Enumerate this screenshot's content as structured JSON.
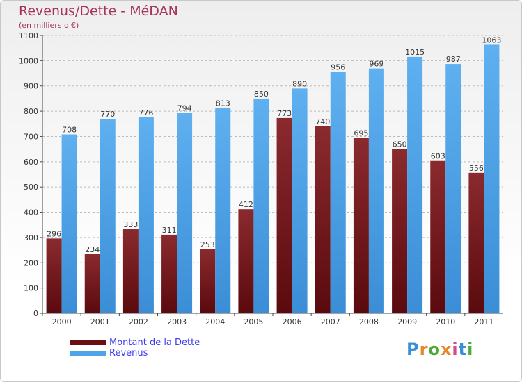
{
  "title": "Revenus/Dette - MéDAN",
  "subtitle": "(en milliers d'€)",
  "logo": {
    "text": "Proxiti",
    "letters": [
      "P",
      "r",
      "o",
      "x",
      "i",
      "t",
      "i"
    ],
    "colors": [
      "#3a8fd8",
      "#e8882a",
      "#4caa3c",
      "#e8882a",
      "#d64a8a",
      "#3a8fd8",
      "#4caa3c"
    ]
  },
  "colors": {
    "dette": "#6b0f14",
    "revenus": "#4fa3e8",
    "axis": "#444444",
    "grid": "#bbbbbb"
  },
  "chart_data": {
    "type": "bar",
    "title": "Revenus/Dette - MéDAN",
    "subtitle": "(en milliers d'€)",
    "categories": [
      "2000",
      "2001",
      "2002",
      "2003",
      "2004",
      "2005",
      "2006",
      "2007",
      "2008",
      "2009",
      "2010",
      "2011"
    ],
    "series": [
      {
        "name": "Montant de la Dette",
        "color": "#6b0f14",
        "values": [
          296,
          234,
          333,
          311,
          253,
          412,
          773,
          740,
          695,
          650,
          603,
          556
        ]
      },
      {
        "name": "Revenus",
        "color": "#4fa3e8",
        "values": [
          708,
          770,
          776,
          794,
          813,
          850,
          890,
          956,
          969,
          1015,
          987,
          1063
        ]
      }
    ],
    "yticks": [
      0,
      100,
      200,
      300,
      400,
      500,
      600,
      700,
      800,
      900,
      1000,
      1100
    ],
    "ylim": [
      0,
      1100
    ],
    "grid": true,
    "legend_position": "bottom-left"
  }
}
